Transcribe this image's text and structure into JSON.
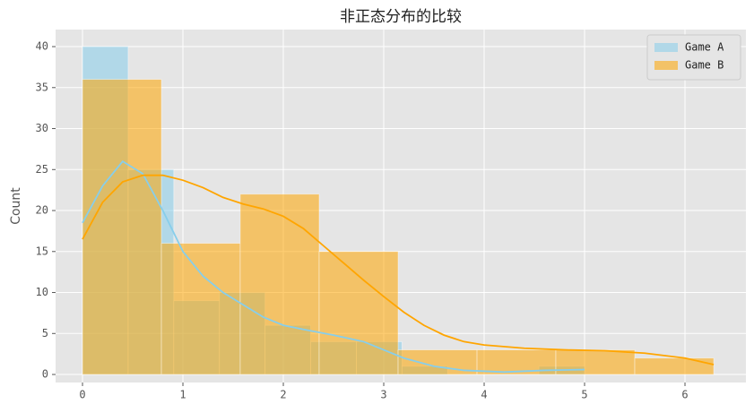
{
  "chart_data": {
    "type": "histogram",
    "title": "非正态分布的比较",
    "ylabel": "Count",
    "xlim": [
      -0.268,
      6.607
    ],
    "ylim": [
      -0.98,
      42.08
    ],
    "xticks": [
      0,
      1,
      2,
      3,
      4,
      5,
      6
    ],
    "yticks": [
      0,
      5,
      10,
      15,
      20,
      25,
      30,
      35,
      40
    ],
    "grid": true,
    "legend": "upper right",
    "series": [
      {
        "name": "Game A",
        "color": "#87ceeb",
        "bins": [
          0,
          0.4545,
          0.9091,
          1.3636,
          1.8182,
          2.2727,
          2.7273,
          3.1818,
          3.6364,
          4.0909,
          4.5455,
          5.0
        ],
        "values": [
          40,
          25,
          9,
          10,
          6,
          4,
          4,
          1,
          0,
          0,
          1
        ],
        "kde_x": [
          0,
          0.2,
          0.4,
          0.6,
          0.8,
          1.0,
          1.2,
          1.4,
          1.6,
          1.8,
          2.0,
          2.2,
          2.5,
          2.8,
          3.0,
          3.2,
          3.5,
          3.8,
          4.2,
          4.6,
          5.0
        ],
        "kde_values": [
          18.5,
          23,
          26,
          24.5,
          20,
          15,
          12,
          10,
          8.5,
          7,
          6,
          5.5,
          4.8,
          4,
          3,
          2,
          1,
          0.5,
          0.3,
          0.5,
          0.6
        ]
      },
      {
        "name": "Game B",
        "color": "#ffa500",
        "bins": [
          0,
          0.786,
          1.571,
          2.357,
          3.143,
          3.929,
          4.714,
          5.5,
          6.286
        ],
        "values": [
          36,
          16,
          22,
          15,
          3,
          3,
          3,
          2
        ],
        "kde_x": [
          0,
          0.2,
          0.4,
          0.6,
          0.8,
          1.0,
          1.2,
          1.4,
          1.6,
          1.8,
          2.0,
          2.2,
          2.4,
          2.6,
          2.8,
          3.0,
          3.2,
          3.4,
          3.6,
          3.8,
          4.0,
          4.4,
          4.8,
          5.2,
          5.6,
          6.0,
          6.286
        ],
        "kde_values": [
          16.5,
          21,
          23.5,
          24.3,
          24.3,
          23.7,
          22.8,
          21.6,
          20.8,
          20.2,
          19.3,
          17.8,
          15.7,
          13.6,
          11.5,
          9.5,
          7.6,
          6,
          4.8,
          4,
          3.6,
          3.2,
          3.0,
          2.9,
          2.6,
          2.0,
          1.2
        ]
      }
    ]
  }
}
